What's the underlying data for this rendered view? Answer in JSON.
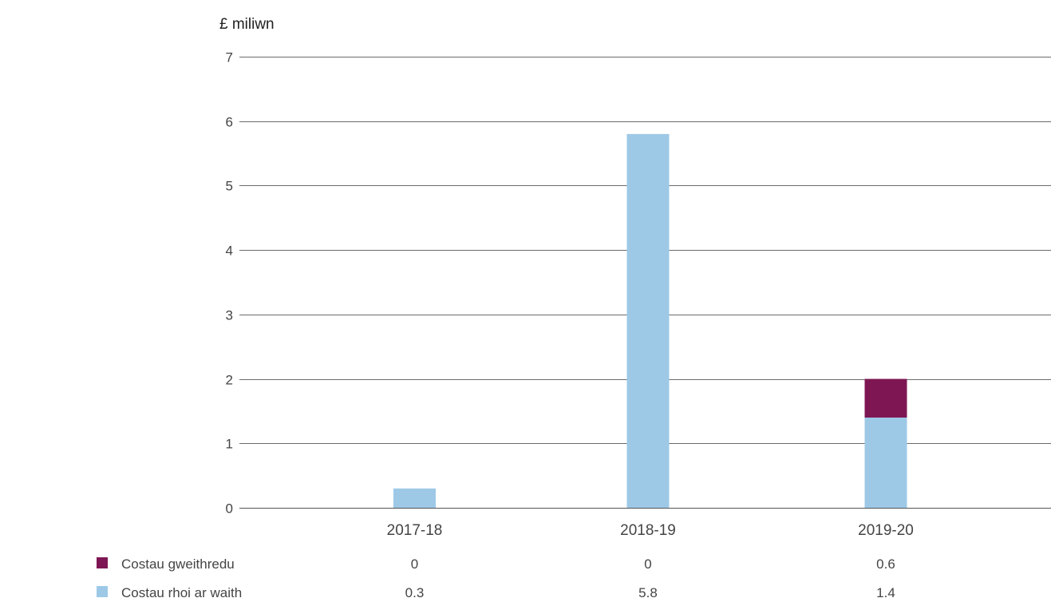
{
  "chart_data": {
    "type": "bar",
    "stacked": true,
    "ylabel": "£ miliwn",
    "ylim": [
      0,
      7
    ],
    "yticks": [
      0,
      1,
      2,
      3,
      4,
      5,
      6,
      7
    ],
    "grid": true,
    "legend_placement": "bottom-left",
    "categories": [
      "2017-18",
      "2018-19",
      "2019-20"
    ],
    "series": [
      {
        "name": "Costau rhoi ar waith",
        "values": [
          0.3,
          5.8,
          1.4
        ],
        "display_values": [
          "0.3",
          "5.8",
          "1.4"
        ],
        "color": "#9dc9e7"
      },
      {
        "name": "Costau gweithredu",
        "values": [
          0,
          0,
          0.6
        ],
        "display_values": [
          "0",
          "0",
          "0.6"
        ],
        "color": "#7f1654"
      }
    ]
  }
}
